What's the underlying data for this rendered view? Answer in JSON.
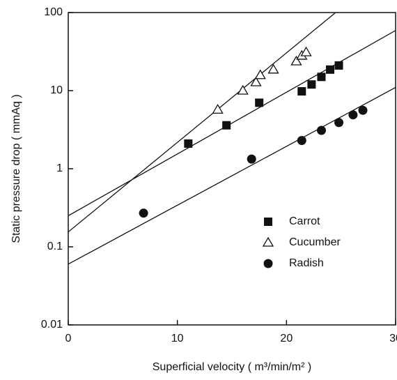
{
  "chart_data": {
    "type": "scatter",
    "xlabel": "Superficial velocity ( m³/min/m² )",
    "ylabel": "Static pressure drop ( mmAq )",
    "xlim": [
      0,
      30
    ],
    "xticks": [
      0,
      10,
      20,
      30
    ],
    "ylim": [
      0.01,
      100
    ],
    "yticks": [
      0.01,
      0.1,
      1,
      10,
      100
    ],
    "ylog": true,
    "legend": "lower right",
    "series": [
      {
        "name": "Carrot",
        "color": "#111111",
        "marker": "square",
        "x": [
          11.0,
          14.5,
          17.5,
          21.4,
          22.3,
          23.2,
          24.0,
          24.8
        ],
        "values": [
          2.1,
          3.6,
          7.0,
          9.8,
          12,
          15,
          18.6,
          21
        ]
      },
      {
        "name": "Cucumber",
        "color": "#111111",
        "marker": "triangle",
        "x": [
          13.7,
          16.0,
          17.2,
          17.6,
          18.8,
          20.9,
          21.4,
          21.8
        ],
        "values": [
          5.7,
          10,
          12.8,
          15.8,
          18.6,
          23.7,
          28,
          31
        ]
      },
      {
        "name": "Radish",
        "color": "#111111",
        "marker": "circle",
        "x": [
          6.9,
          16.8,
          21.4,
          23.2,
          24.8,
          26.1,
          27.0
        ],
        "values": [
          0.27,
          1.33,
          2.3,
          3.1,
          3.9,
          4.9,
          5.6
        ]
      }
    ],
    "lines": [
      {
        "x": [
          0,
          30
        ],
        "values": [
          0.25,
          59
        ]
      },
      {
        "x": [
          0,
          24.5
        ],
        "values": [
          0.155,
          100
        ]
      },
      {
        "x": [
          0,
          30
        ],
        "values": [
          0.06,
          11
        ]
      }
    ]
  }
}
